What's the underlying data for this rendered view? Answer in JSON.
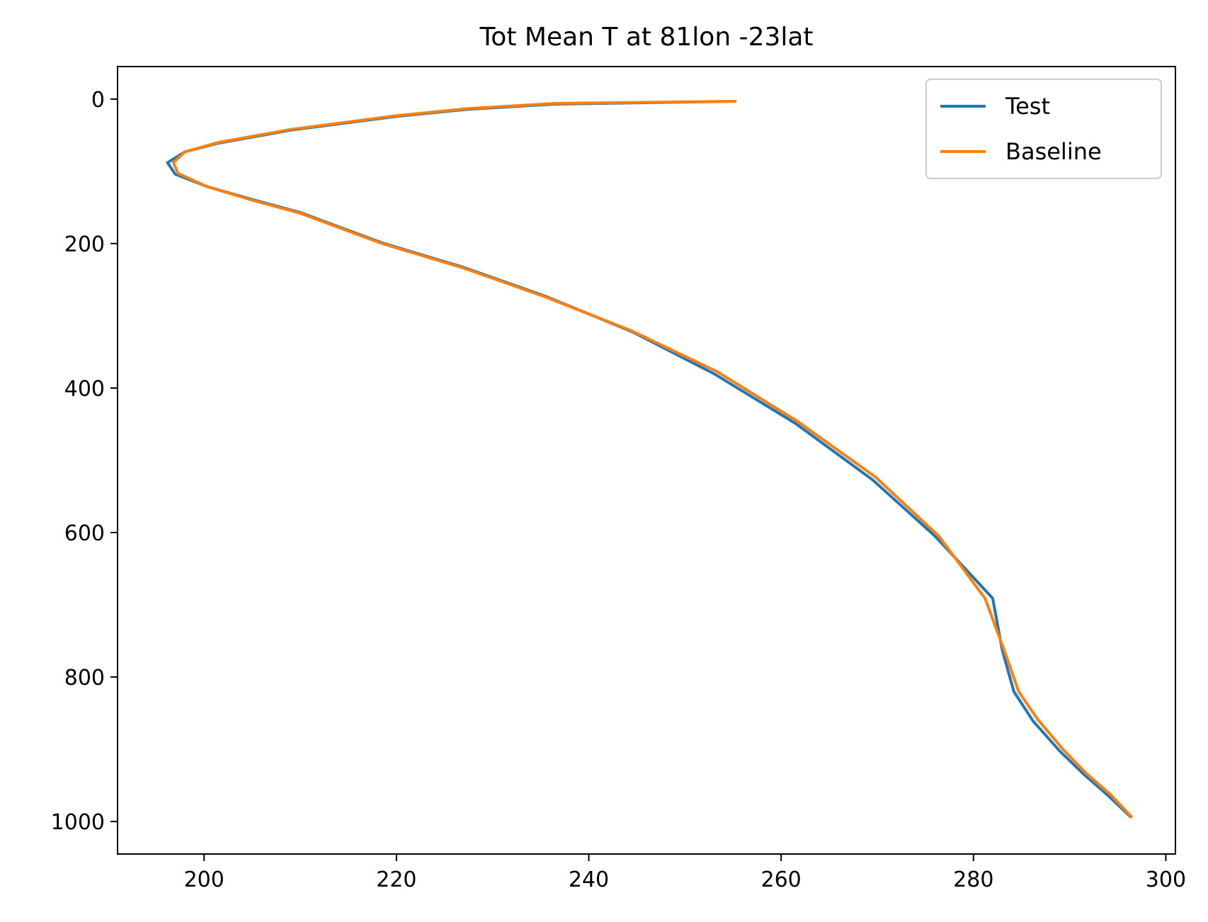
{
  "chart_data": {
    "type": "line",
    "title": "Tot Mean T at 81lon -23lat",
    "xlabel": "",
    "ylabel": "",
    "xlim": [
      191,
      301
    ],
    "ylim": [
      1045,
      -45
    ],
    "y_inverted": true,
    "xticks": [
      200,
      220,
      240,
      260,
      280,
      300
    ],
    "yticks": [
      0,
      200,
      400,
      600,
      800,
      1000
    ],
    "grid": false,
    "legend_position": "top-right",
    "series": [
      {
        "name": "Test",
        "color": "#1f77b4",
        "points": [
          [
            255.2,
            3
          ],
          [
            236.5,
            7
          ],
          [
            227.5,
            14
          ],
          [
            220,
            24
          ],
          [
            209,
            43
          ],
          [
            201.5,
            61
          ],
          [
            198,
            73
          ],
          [
            196.2,
            88
          ],
          [
            197,
            104
          ],
          [
            200.3,
            121
          ],
          [
            205,
            139
          ],
          [
            210,
            157
          ],
          [
            218.5,
            199
          ],
          [
            227,
            233
          ],
          [
            235.5,
            273
          ],
          [
            244.5,
            322
          ],
          [
            253,
            380
          ],
          [
            261.5,
            449
          ],
          [
            269.5,
            527
          ],
          [
            276,
            605
          ],
          [
            282,
            691
          ],
          [
            283,
            763
          ],
          [
            284.2,
            820
          ],
          [
            286.2,
            861
          ],
          [
            289,
            903
          ],
          [
            291.5,
            935
          ],
          [
            294,
            964
          ],
          [
            296.3,
            993
          ]
        ]
      },
      {
        "name": "Baseline",
        "color": "#ff7f0e",
        "points": [
          [
            255.2,
            3
          ],
          [
            236.5,
            6
          ],
          [
            227.5,
            13
          ],
          [
            220,
            23
          ],
          [
            209,
            42
          ],
          [
            201.5,
            60
          ],
          [
            198,
            73
          ],
          [
            196.8,
            88
          ],
          [
            197.3,
            103
          ],
          [
            200.3,
            121
          ],
          [
            205,
            140
          ],
          [
            210,
            158
          ],
          [
            218.5,
            200
          ],
          [
            227,
            234
          ],
          [
            235.5,
            274
          ],
          [
            244.5,
            321
          ],
          [
            253.3,
            377
          ],
          [
            261.7,
            446
          ],
          [
            269.8,
            523
          ],
          [
            276.4,
            605
          ],
          [
            281.2,
            691
          ],
          [
            283.2,
            763
          ],
          [
            284.7,
            820
          ],
          [
            286.7,
            859
          ],
          [
            289.3,
            900
          ],
          [
            291.7,
            933
          ],
          [
            294.2,
            962
          ],
          [
            296.4,
            993
          ]
        ]
      }
    ]
  }
}
